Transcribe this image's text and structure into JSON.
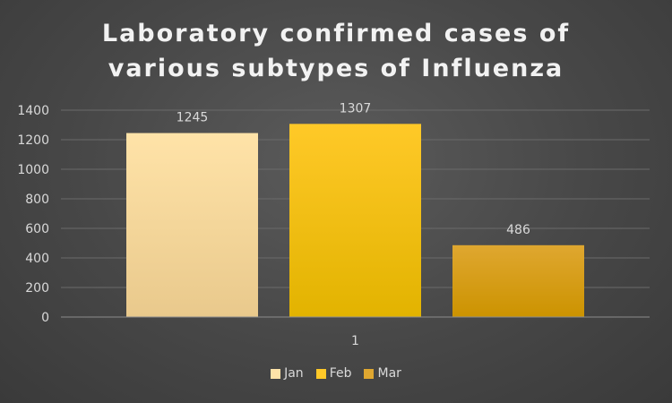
{
  "chart_data": {
    "type": "bar",
    "title_lines": [
      "Laboratory confirmed cases of",
      "various subtypes of Influenza"
    ],
    "categories": [
      "1"
    ],
    "series": [
      {
        "name": "Jan",
        "values": [
          1245
        ],
        "color": "#ffe3a8",
        "color_bottom": "#e9c98c"
      },
      {
        "name": "Feb",
        "values": [
          1307
        ],
        "color": "#ffc928",
        "color_bottom": "#e2b300"
      },
      {
        "name": "Mar",
        "values": [
          486
        ],
        "color": "#dfa730",
        "color_bottom": "#cc9300"
      }
    ],
    "data_labels": [
      "1245",
      "1307",
      "486"
    ],
    "yticks": [
      "0",
      "200",
      "400",
      "600",
      "800",
      "1000",
      "1200",
      "1400"
    ],
    "ylim": [
      0,
      1400
    ],
    "grid": true,
    "legend_position": "bottom",
    "colors": {
      "background": "#474747",
      "text": "#d9d9d9",
      "grid": "#6a6a6a",
      "axis": "#8c8c8c"
    }
  }
}
